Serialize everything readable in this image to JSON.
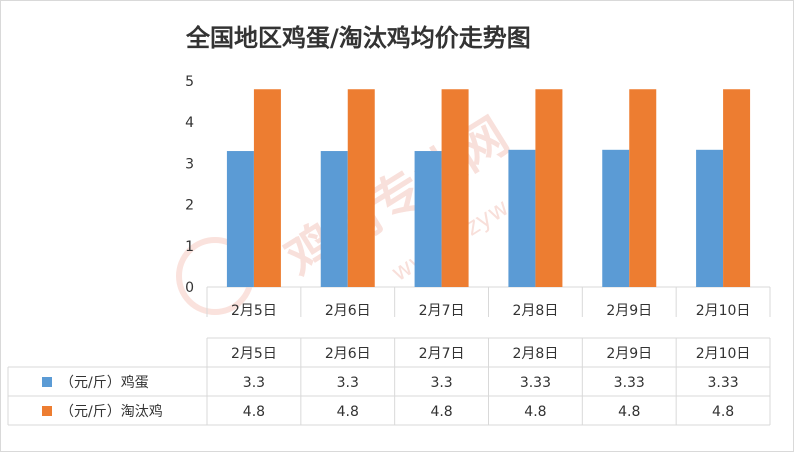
{
  "chart_data": {
    "type": "bar",
    "title": "全国地区鸡蛋/淘汰鸡均价走势图",
    "categories": [
      "2月5日",
      "2月6日",
      "2月7日",
      "2月8日",
      "2月9日",
      "2月10日"
    ],
    "series": [
      {
        "name": "（元/斤）鸡蛋",
        "color": "#5b9bd5",
        "values": [
          3.3,
          3.3,
          3.3,
          3.33,
          3.33,
          3.33
        ]
      },
      {
        "name": "（元/斤）淘汰鸡",
        "color": "#ed7d31",
        "values": [
          4.8,
          4.8,
          4.8,
          4.8,
          4.8,
          4.8
        ]
      }
    ],
    "value_labels": [
      [
        "3.3",
        "3.3",
        "3.3",
        "3.33",
        "3.33",
        "3.33"
      ],
      [
        "4.8",
        "4.8",
        "4.8",
        "4.8",
        "4.8",
        "4.8"
      ]
    ],
    "yticks": [
      "0",
      "1",
      "2",
      "3",
      "4",
      "5"
    ],
    "ylim": [
      0,
      5
    ],
    "grid": false,
    "legend": "data-table",
    "xlabel": "",
    "ylabel": ""
  },
  "watermark": {
    "text": "鸡病专业网",
    "url": "www.jbzyw.com"
  },
  "colors": {
    "axis": "#d9d9d9",
    "text": "#333333"
  }
}
